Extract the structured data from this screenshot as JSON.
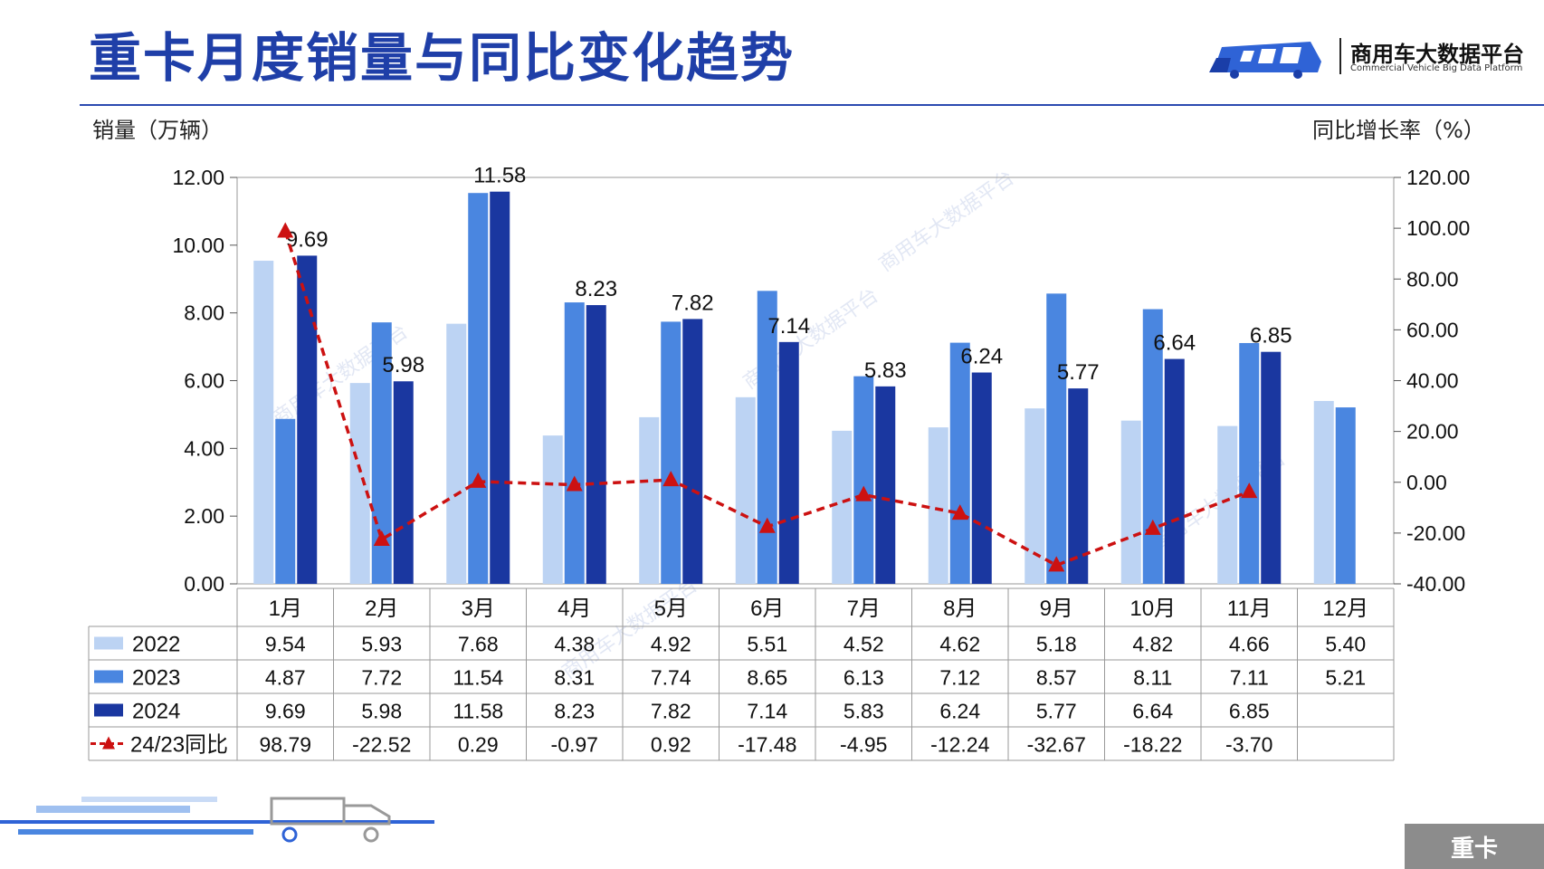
{
  "header": {
    "title": "重卡月度销量与同比变化趋势",
    "brand_name": "商用车大数据平台",
    "brand_sub": "Commercial Vehicle Big Data Platform",
    "watermark_text": "商用车大数据平台"
  },
  "footer": {
    "tag": "重卡"
  },
  "colors": {
    "s2022": "#bcd3f3",
    "s2023": "#4a86e0",
    "s2024": "#1a37a0",
    "yoy": "#cc1111",
    "title": "#1f3fa8",
    "grid": "#888888"
  },
  "chart_data": {
    "type": "bar",
    "y_left_label": "销量（万辆）",
    "y_right_label": "同比增长率（%）",
    "y_left_ticks": [
      "12.00",
      "10.00",
      "8.00",
      "6.00",
      "4.00",
      "2.00",
      "0.00"
    ],
    "y_right_ticks": [
      "120.00",
      "100.00",
      "80.00",
      "60.00",
      "40.00",
      "20.00",
      "0.00",
      "-20.00",
      "-40.00"
    ],
    "ylim_left": [
      0,
      12
    ],
    "ylim_right": [
      -40,
      120
    ],
    "categories": [
      "1月",
      "2月",
      "3月",
      "4月",
      "5月",
      "6月",
      "7月",
      "8月",
      "9月",
      "10月",
      "11月",
      "12月"
    ],
    "series": [
      {
        "name": "2022",
        "values": [
          9.54,
          5.93,
          7.68,
          4.38,
          4.92,
          5.51,
          4.52,
          4.62,
          5.18,
          4.82,
          4.66,
          5.4
        ],
        "labels": [
          "9.54",
          "5.93",
          "7.68",
          "4.38",
          "4.92",
          "5.51",
          "4.52",
          "4.62",
          "5.18",
          "4.82",
          "4.66",
          "5.40"
        ]
      },
      {
        "name": "2023",
        "values": [
          4.87,
          7.72,
          11.54,
          8.31,
          7.74,
          8.65,
          6.13,
          7.12,
          8.57,
          8.11,
          7.11,
          5.21
        ],
        "labels": [
          "4.87",
          "7.72",
          "11.54",
          "8.31",
          "7.74",
          "8.65",
          "6.13",
          "7.12",
          "8.57",
          "8.11",
          "7.11",
          "5.21"
        ]
      },
      {
        "name": "2024",
        "values": [
          9.69,
          5.98,
          11.58,
          8.23,
          7.82,
          7.14,
          5.83,
          6.24,
          5.77,
          6.64,
          6.85,
          null
        ],
        "labels": [
          "9.69",
          "5.98",
          "11.58",
          "8.23",
          "7.82",
          "7.14",
          "5.83",
          "6.24",
          "5.77",
          "6.64",
          "6.85",
          ""
        ]
      }
    ],
    "yoy": {
      "name": "24/23同比",
      "values": [
        98.79,
        -22.52,
        0.29,
        -0.97,
        0.92,
        -17.48,
        -4.95,
        -12.24,
        -32.67,
        -18.22,
        -3.7,
        null
      ],
      "labels": [
        "98.79",
        "-22.52",
        "0.29",
        "-0.97",
        "0.92",
        "-17.48",
        "-4.95",
        "-12.24",
        "-32.67",
        "-18.22",
        "-3.70",
        ""
      ]
    }
  }
}
